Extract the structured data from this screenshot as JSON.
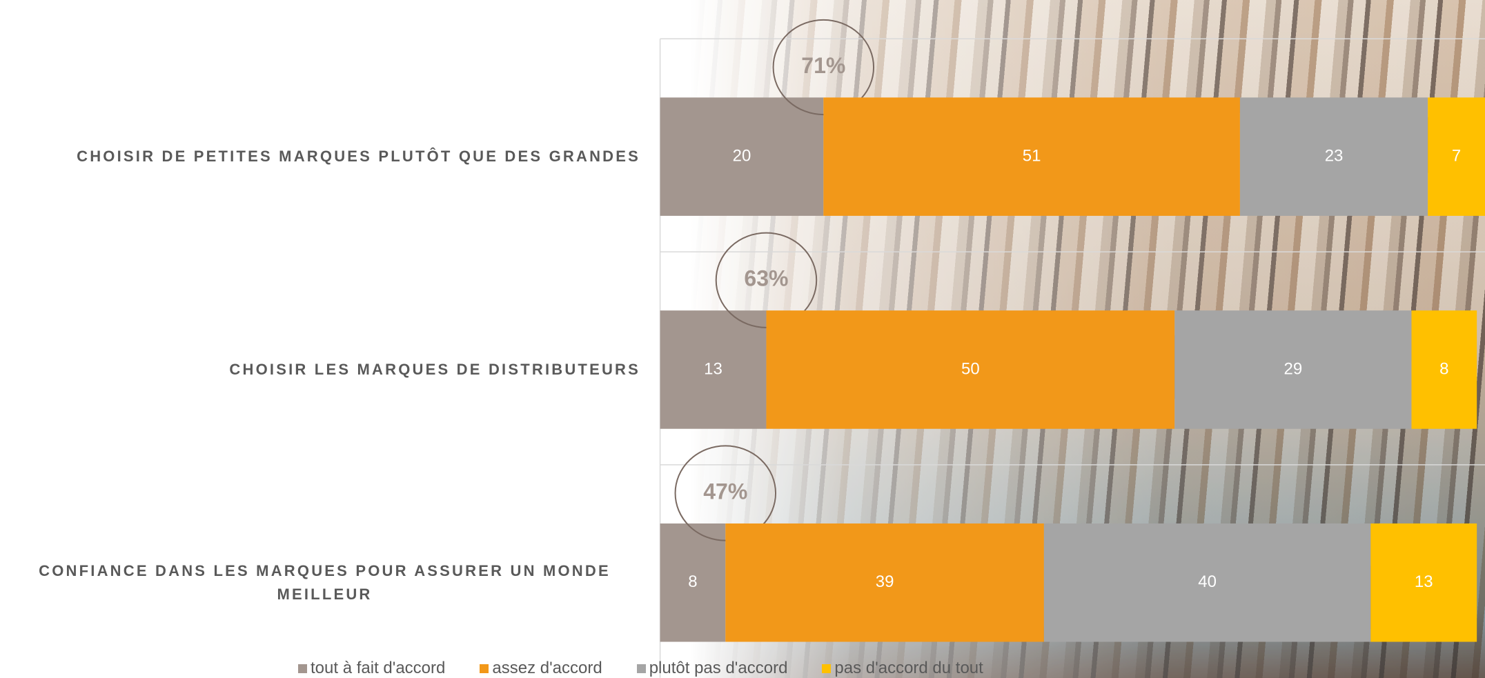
{
  "chart_data": {
    "type": "stacked-bar-horizontal",
    "categories": [
      "CHOISIR DE PETITES MARQUES PLUTÔT QUE DES GRANDES",
      "CHOISIR LES MARQUES DE DISTRIBUTEURS",
      "CONFIANCE DANS LES MARQUES POUR ASSURER UN MONDE MEILLEUR"
    ],
    "series": [
      {
        "name": "tout à fait d'accord",
        "color": "#a3968f",
        "values": [
          20,
          13,
          8
        ]
      },
      {
        "name": "assez d'accord",
        "color": "#f29819",
        "values": [
          51,
          50,
          39
        ]
      },
      {
        "name": "plutôt pas d'accord",
        "color": "#a5a5a5",
        "values": [
          23,
          29,
          40
        ]
      },
      {
        "name": "pas d'accord du tout",
        "color": "#ffc000",
        "values": [
          7,
          8,
          13
        ]
      }
    ],
    "annotations": [
      "71%",
      "63%",
      "47%"
    ],
    "xlim": [
      0,
      101
    ],
    "legend": "bottom"
  }
}
